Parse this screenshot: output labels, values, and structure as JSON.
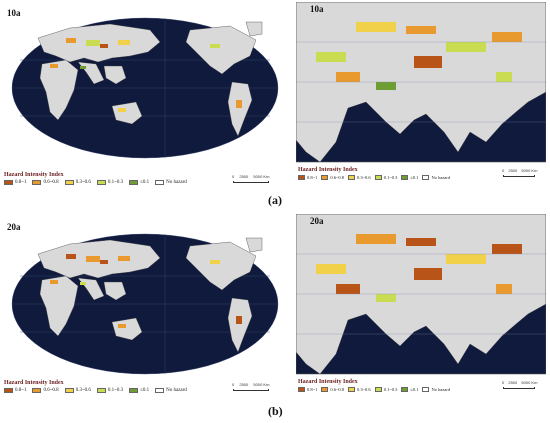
{
  "legend": {
    "title": "Hazard Intensity Index",
    "classes": [
      {
        "label": "0.8~1",
        "color": "#b85418"
      },
      {
        "label": "0.6~0.8",
        "color": "#e89a2f"
      },
      {
        "label": "0.3~0.6",
        "color": "#f2d14a"
      },
      {
        "label": "0.1~0.3",
        "color": "#c9dc52"
      },
      {
        "label": "≤0.1",
        "color": "#6e9d33"
      },
      {
        "label": "No hazard",
        "color": "#ffffff"
      }
    ]
  },
  "scale": {
    "zero": "0",
    "mid": "2500",
    "end": "5000 Km"
  },
  "panels": [
    {
      "label": "10a"
    },
    {
      "label": "10a"
    },
    {
      "label": "20a"
    },
    {
      "label": "20a"
    }
  ],
  "captions": {
    "a": "(a)",
    "b": "(b)"
  },
  "colors": {
    "ocean": "#101a3c",
    "land": "#d9d9d9",
    "frame": "#ffffff"
  }
}
